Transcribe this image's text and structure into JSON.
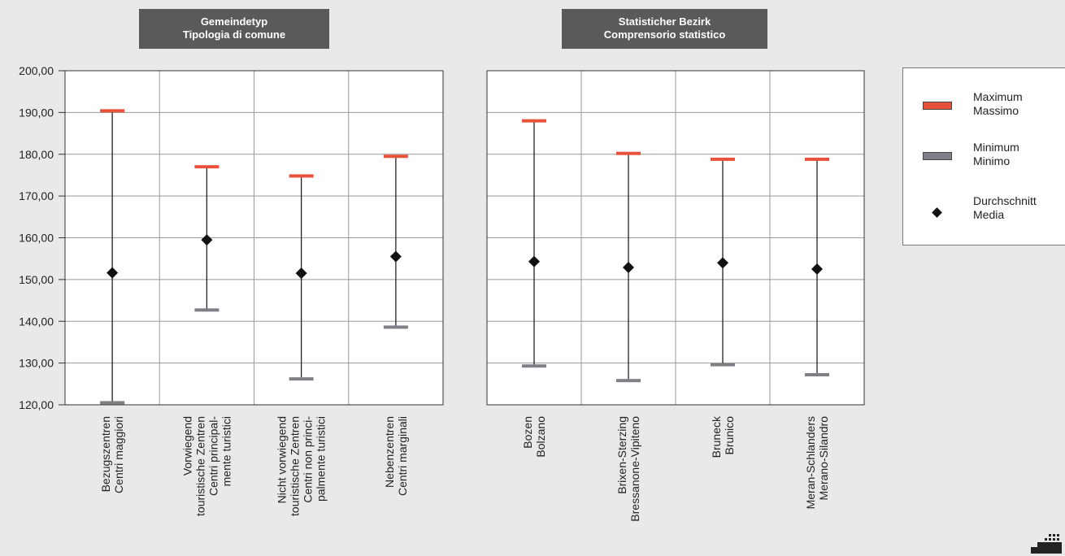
{
  "panels": [
    {
      "header": [
        "Gemeindetyp",
        "Tipologia di comune"
      ],
      "categories": [
        [
          "Bezugszentren",
          "Centri  maggiori"
        ],
        [
          "Vorwiegend",
          "touristische Zentren",
          "Centri principal-",
          "mente turistici"
        ],
        [
          "Nicht vorwiegend",
          "touristische Zentren",
          "Centri non princi-",
          "palmente turistici"
        ],
        [
          "Nebenzentren",
          "Centri marginali"
        ]
      ]
    },
    {
      "header": [
        "Statisticher Bezirk",
        "Comprensorio statistico"
      ],
      "categories": [
        [
          "Bozen",
          "Bolzano"
        ],
        [
          "Brixen-Sterzing",
          "Bressanone-Vipiteno"
        ],
        [
          "Bruneck",
          "Brunico"
        ],
        [
          "Meran-Schlanders",
          "Merano-Silandro"
        ]
      ]
    }
  ],
  "legend": {
    "max": [
      "Maximum",
      "Massimo"
    ],
    "min": [
      "Minimum",
      "Minimo"
    ],
    "avg": [
      "Durchschnitt",
      "Media"
    ]
  },
  "colors": {
    "max": "#e8523a",
    "min": "#7f7f85",
    "avg": "#111111",
    "header_bg": "#5a5a5a"
  },
  "chart_data": {
    "type": "error-range",
    "ylim": [
      120,
      200
    ],
    "yticks": [
      "120,00",
      "130,00",
      "140,00",
      "150,00",
      "160,00",
      "170,00",
      "180,00",
      "190,00",
      "200,00"
    ],
    "series": [
      {
        "name": "Maximum / Massimo",
        "panels": [
          [
            190.4,
            177.0,
            174.8,
            179.5
          ],
          [
            188.0,
            180.2,
            178.8,
            178.8
          ]
        ]
      },
      {
        "name": "Minimum / Minimo",
        "panels": [
          [
            120.5,
            142.7,
            126.2,
            138.6
          ],
          [
            129.3,
            125.8,
            129.6,
            127.2
          ]
        ]
      },
      {
        "name": "Durchschnitt / Media",
        "panels": [
          [
            151.6,
            159.5,
            151.5,
            155.5
          ],
          [
            154.3,
            152.9,
            154.0,
            152.5
          ]
        ]
      }
    ]
  }
}
